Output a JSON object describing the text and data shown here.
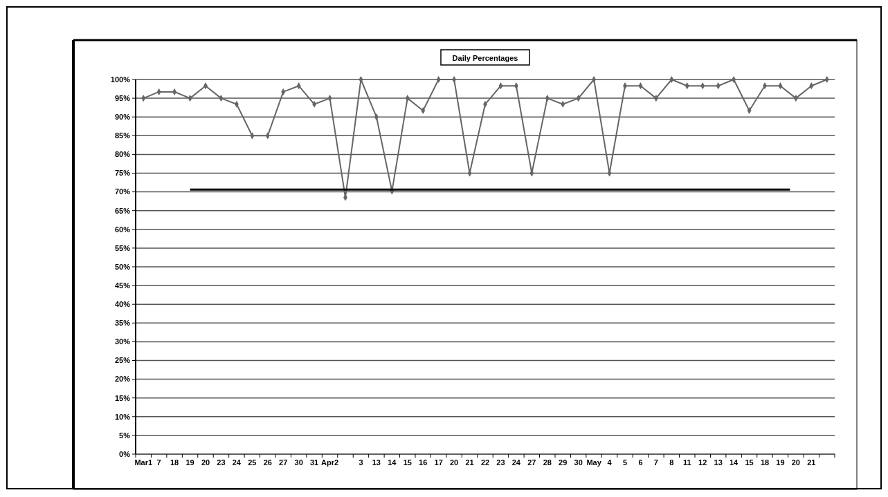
{
  "chart_data": {
    "type": "line",
    "title": "Daily Percentages",
    "categories": [
      "Mar1",
      "7",
      "18",
      "19",
      "20",
      "23",
      "24",
      "25",
      "26",
      "27",
      "30",
      "31",
      "Apr2",
      null,
      "3",
      "13",
      "14",
      "15",
      "16",
      "17",
      "20",
      "21",
      "22",
      "23",
      "24",
      "27",
      "28",
      "29",
      "30",
      "May",
      "4",
      "5",
      "6",
      "7",
      "8",
      "11",
      "12",
      "13",
      "14",
      "15",
      "18",
      "19",
      "20",
      "21",
      null
    ],
    "series": [
      {
        "color": "#666666",
        "values": [
          95,
          96.7,
          96.7,
          95,
          98.3,
          95,
          93.4,
          85,
          85,
          96.7,
          98.3,
          93.4,
          95,
          68.5,
          100,
          90,
          70.2,
          95,
          91.7,
          100,
          100,
          75,
          93.4,
          98.3,
          98.3,
          75,
          95,
          93.4,
          95,
          100,
          75,
          98.3,
          98.3,
          95,
          100,
          98.3,
          98.3,
          98.3,
          100,
          91.7,
          98.3,
          98.3,
          95,
          98.3,
          100
        ]
      }
    ],
    "ylim": [
      0,
      100
    ],
    "yticks": [
      {
        "value": 0,
        "label": "0%"
      },
      {
        "value": 5,
        "label": "5%"
      },
      {
        "value": 10,
        "label": "10%"
      },
      {
        "value": 15,
        "label": "15%"
      },
      {
        "value": 20,
        "label": "20%"
      },
      {
        "value": 25,
        "label": "25%"
      },
      {
        "value": 30,
        "label": "30%"
      },
      {
        "value": 35,
        "label": "35%"
      },
      {
        "value": 40,
        "label": "40%"
      },
      {
        "value": 45,
        "label": "45%"
      },
      {
        "value": 50,
        "label": "50%"
      },
      {
        "value": 55,
        "label": "55%"
      },
      {
        "value": 60,
        "label": "60%"
      },
      {
        "value": 65,
        "label": "65%"
      },
      {
        "value": 70,
        "label": "70%"
      },
      {
        "value": 75,
        "label": "75%"
      },
      {
        "value": 80,
        "label": "80%"
      },
      {
        "value": 85,
        "label": "85%"
      },
      {
        "value": 90,
        "label": "90%"
      },
      {
        "value": 95,
        "label": "95%"
      },
      {
        "value": 100,
        "label": "100%"
      }
    ],
    "grid": "y",
    "marker": "diamond",
    "line_style": "solid",
    "ref_lines": [
      {
        "axis": "y",
        "value": 70.6,
        "color": "#000000"
      }
    ]
  }
}
